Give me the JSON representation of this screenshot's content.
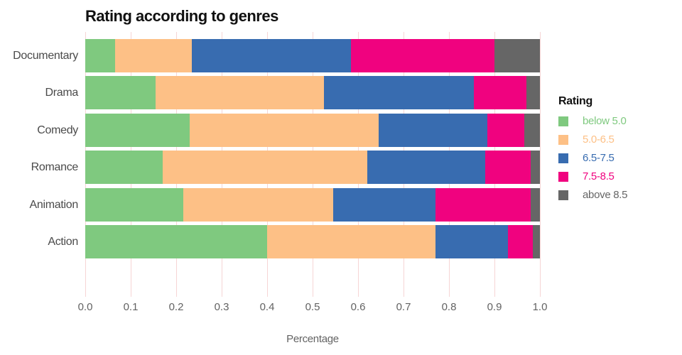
{
  "chart_data": {
    "type": "bar",
    "orientation": "horizontal",
    "stacked": true,
    "title": "Rating according to genres",
    "xlabel": "Percentage",
    "ylabel": "",
    "xlim": [
      0.0,
      1.0
    ],
    "xticks": [
      "0.0",
      "0.1",
      "0.2",
      "0.3",
      "0.4",
      "0.5",
      "0.6",
      "0.7",
      "0.8",
      "0.9",
      "1.0"
    ],
    "xtick_values": [
      0.0,
      0.1,
      0.2,
      0.3,
      0.4,
      0.5,
      0.6,
      0.7,
      0.8,
      0.9,
      1.0
    ],
    "categories": [
      "Documentary",
      "Drama",
      "Comedy",
      "Romance",
      "Animation",
      "Action"
    ],
    "series": [
      {
        "name": "below 5.0",
        "color": "#7FC97F",
        "values": [
          0.065,
          0.155,
          0.23,
          0.17,
          0.215,
          0.4
        ]
      },
      {
        "name": "5.0-6.5",
        "color": "#FDC086",
        "values": [
          0.17,
          0.37,
          0.415,
          0.45,
          0.33,
          0.37
        ]
      },
      {
        "name": "6.5-7.5",
        "color": "#386CB0",
        "values": [
          0.35,
          0.33,
          0.24,
          0.26,
          0.225,
          0.16
        ]
      },
      {
        "name": "7.5-8.5",
        "color": "#F0027F",
        "values": [
          0.315,
          0.115,
          0.08,
          0.1,
          0.21,
          0.055
        ]
      },
      {
        "name": "above 8.5",
        "color": "#666666",
        "values": [
          0.1,
          0.03,
          0.035,
          0.02,
          0.02,
          0.015
        ]
      }
    ],
    "legend_title": "Rating",
    "legend_position": "right",
    "grid": "vertical",
    "gridline_color": "#f6d5d5",
    "background_color": "#ffffff"
  }
}
